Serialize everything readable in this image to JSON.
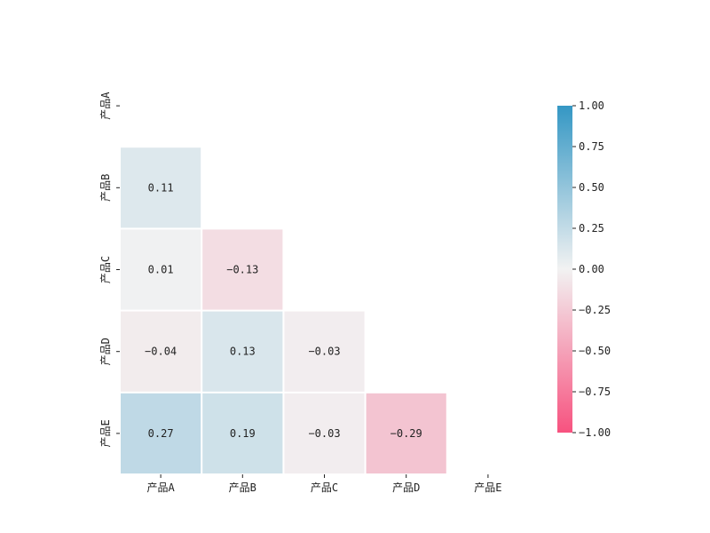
{
  "chart_data": {
    "type": "heatmap",
    "title": "",
    "xlabel": "",
    "ylabel": "",
    "mask": "upper-triangle-including-diagonal",
    "x_categories": [
      "产品A",
      "产品B",
      "产品C",
      "产品D",
      "产品E"
    ],
    "y_categories": [
      "产品A",
      "产品B",
      "产品C",
      "产品D",
      "产品E"
    ],
    "cells": [
      {
        "row": 1,
        "col": 0,
        "value": 0.11,
        "label": "0.11"
      },
      {
        "row": 2,
        "col": 0,
        "value": 0.01,
        "label": "0.01"
      },
      {
        "row": 2,
        "col": 1,
        "value": -0.13,
        "label": "−0.13"
      },
      {
        "row": 3,
        "col": 0,
        "value": -0.04,
        "label": "−0.04"
      },
      {
        "row": 3,
        "col": 1,
        "value": 0.13,
        "label": "0.13"
      },
      {
        "row": 3,
        "col": 2,
        "value": -0.03,
        "label": "−0.03"
      },
      {
        "row": 4,
        "col": 0,
        "value": 0.27,
        "label": "0.27"
      },
      {
        "row": 4,
        "col": 1,
        "value": 0.19,
        "label": "0.19"
      },
      {
        "row": 4,
        "col": 2,
        "value": -0.03,
        "label": "−0.03"
      },
      {
        "row": 4,
        "col": 3,
        "value": -0.29,
        "label": "−0.29"
      }
    ],
    "colorbar": {
      "vmin": -1.0,
      "vmax": 1.0,
      "ticks": [
        {
          "value": 1.0,
          "label": "1.00"
        },
        {
          "value": 0.75,
          "label": "0.75"
        },
        {
          "value": 0.5,
          "label": "0.50"
        },
        {
          "value": 0.25,
          "label": "0.25"
        },
        {
          "value": 0.0,
          "label": "0.00"
        },
        {
          "value": -0.25,
          "label": "−0.25"
        },
        {
          "value": -0.5,
          "label": "−0.50"
        },
        {
          "value": -0.75,
          "label": "−0.75"
        },
        {
          "value": -1.0,
          "label": "−1.00"
        }
      ],
      "colors": {
        "negative": "#f7527f",
        "center": "#f2f2f2",
        "positive": "#3497c4"
      }
    },
    "grid": false,
    "legend": "colorbar-right"
  }
}
